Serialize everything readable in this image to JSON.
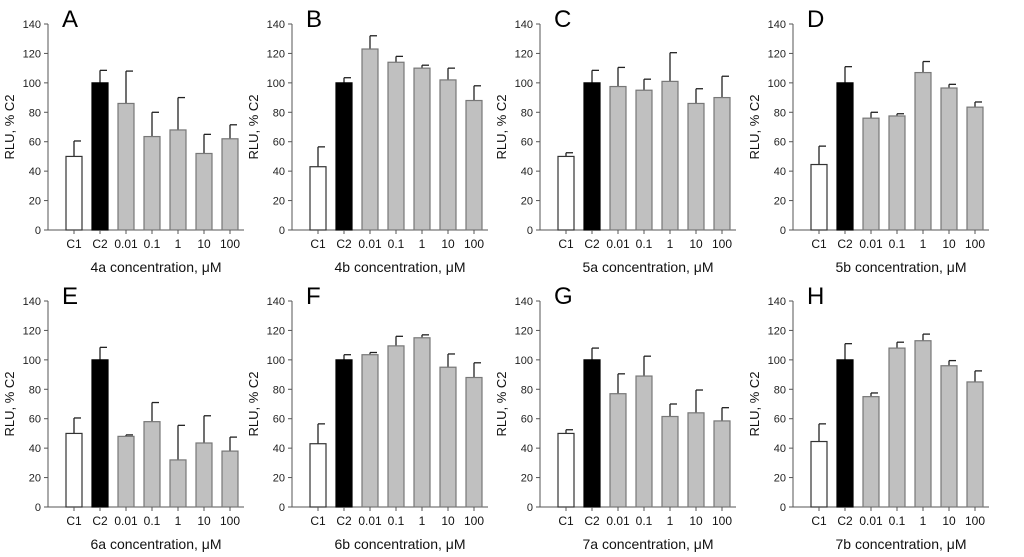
{
  "chart_data": [
    {
      "panel": "A",
      "type": "bar",
      "xlabel": "4a concentration, μM",
      "ylabel": "RLU, % C2",
      "ylim": [
        0,
        140
      ],
      "yticks": [
        0,
        20,
        40,
        60,
        80,
        100,
        120,
        140
      ],
      "categories": [
        "C1",
        "C2",
        "0.01",
        "0.1",
        "1",
        "10",
        "100"
      ],
      "values": [
        50,
        100,
        86,
        63.5,
        68,
        52,
        62
      ],
      "error": [
        10.5,
        8.5,
        22,
        16.5,
        22,
        13,
        9.5
      ]
    },
    {
      "panel": "B",
      "type": "bar",
      "xlabel": "4b concentration, μM",
      "ylabel": "RLU, % C2",
      "ylim": [
        0,
        140
      ],
      "yticks": [
        0,
        20,
        40,
        60,
        80,
        100,
        120,
        140
      ],
      "categories": [
        "C1",
        "C2",
        "0.01",
        "0.1",
        "1",
        "10",
        "100"
      ],
      "values": [
        43,
        100,
        123,
        114,
        110,
        102,
        88
      ],
      "error": [
        13.5,
        3.5,
        9,
        4,
        2,
        8,
        10
      ]
    },
    {
      "panel": "C",
      "type": "bar",
      "xlabel": "5a concentration, μM",
      "ylabel": "RLU, % C2",
      "ylim": [
        0,
        140
      ],
      "yticks": [
        0,
        20,
        40,
        60,
        80,
        100,
        120,
        140
      ],
      "categories": [
        "C1",
        "C2",
        "0.01",
        "0.1",
        "1",
        "10",
        "100"
      ],
      "values": [
        50,
        100,
        97.5,
        95,
        101,
        86,
        90
      ],
      "error": [
        2.5,
        8.5,
        13,
        7.5,
        19.5,
        10,
        14.5
      ]
    },
    {
      "panel": "D",
      "type": "bar",
      "xlabel": "5b concentration, μM",
      "ylabel": "RLU, % C2",
      "ylim": [
        0,
        140
      ],
      "yticks": [
        0,
        20,
        40,
        60,
        80,
        100,
        120,
        140
      ],
      "categories": [
        "C1",
        "C2",
        "0.01",
        "0.1",
        "1",
        "10",
        "100"
      ],
      "values": [
        44.5,
        100,
        76,
        77.5,
        107,
        96.5,
        83.5
      ],
      "error": [
        12.5,
        11,
        4,
        1.5,
        7.5,
        2.5,
        3.5
      ]
    },
    {
      "panel": "E",
      "type": "bar",
      "xlabel": "6a concentration, μM",
      "ylabel": "RLU, % C2",
      "ylim": [
        0,
        140
      ],
      "yticks": [
        0,
        20,
        40,
        60,
        80,
        100,
        120,
        140
      ],
      "categories": [
        "C1",
        "C2",
        "0.01",
        "0.1",
        "1",
        "10",
        "100"
      ],
      "values": [
        50,
        100,
        48,
        58,
        32,
        43.5,
        38
      ],
      "error": [
        10.5,
        8.5,
        1,
        13,
        23.5,
        18.5,
        9.5
      ]
    },
    {
      "panel": "F",
      "type": "bar",
      "xlabel": "6b concentration, μM",
      "ylabel": "RLU, % C2",
      "ylim": [
        0,
        140
      ],
      "yticks": [
        0,
        20,
        40,
        60,
        80,
        100,
        120,
        140
      ],
      "categories": [
        "C1",
        "C2",
        "0.01",
        "0.1",
        "1",
        "10",
        "100"
      ],
      "values": [
        43,
        100,
        103.5,
        109.5,
        115,
        95,
        88
      ],
      "error": [
        13.5,
        3.5,
        1.5,
        6.5,
        2,
        9,
        10
      ]
    },
    {
      "panel": "G",
      "type": "bar",
      "xlabel": "7a concentration, μM",
      "ylabel": "RLU, % C2",
      "ylim": [
        0,
        140
      ],
      "yticks": [
        0,
        20,
        40,
        60,
        80,
        100,
        120,
        140
      ],
      "categories": [
        "C1",
        "C2",
        "0.01",
        "0.1",
        "1",
        "10",
        "100"
      ],
      "values": [
        50,
        100,
        77,
        89,
        61.5,
        64,
        58.5
      ],
      "error": [
        2.5,
        8,
        13.5,
        13.5,
        8.5,
        15.5,
        9
      ]
    },
    {
      "panel": "H",
      "type": "bar",
      "xlabel": "7b concentration, μM",
      "ylabel": "RLU, % C2",
      "ylim": [
        0,
        140
      ],
      "yticks": [
        0,
        20,
        40,
        60,
        80,
        100,
        120,
        140
      ],
      "categories": [
        "C1",
        "C2",
        "0.01",
        "0.1",
        "1",
        "10",
        "100"
      ],
      "values": [
        44.5,
        100,
        75,
        108,
        113,
        96,
        85
      ],
      "error": [
        12,
        11,
        2.5,
        4,
        4.5,
        3.5,
        7.5
      ]
    }
  ],
  "colors": {
    "C1": "#ffffff",
    "C2": "#000000",
    "treatment": "#c0c0c0",
    "outline": "#444444"
  }
}
